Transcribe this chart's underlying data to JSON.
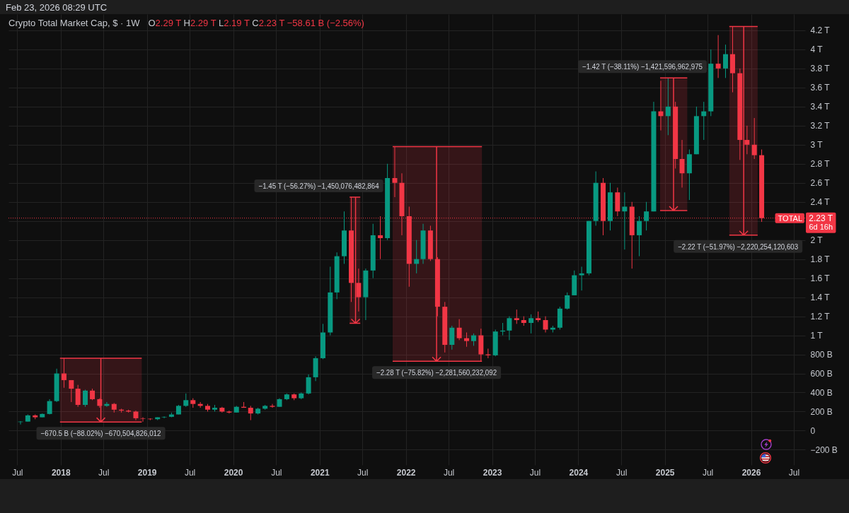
{
  "chart_data": {
    "type": "candlestick",
    "title": "Crypto Total Market Cap, $ · 1W",
    "subtitle": "O2.29 T H2.29 T L2.19 T C2.23 T −58.61 B (−2.56%)",
    "x": [
      "2017-07-15",
      "2017-08-15",
      "2017-09-15",
      "2017-10-15",
      "2017-11-15",
      "2017-12-15",
      "2018-01-15",
      "2018-02-15",
      "2018-03-15",
      "2018-04-15",
      "2018-05-15",
      "2018-06-15",
      "2018-07-15",
      "2018-08-15",
      "2018-09-15",
      "2018-10-15",
      "2018-11-15",
      "2018-12-15",
      "2019-01-15",
      "2019-02-15",
      "2019-03-15",
      "2019-04-15",
      "2019-05-15",
      "2019-06-15",
      "2019-07-15",
      "2019-08-15",
      "2019-09-15",
      "2019-10-15",
      "2019-11-15",
      "2019-12-15",
      "2020-01-15",
      "2020-02-15",
      "2020-03-15",
      "2020-04-15",
      "2020-05-15",
      "2020-06-15",
      "2020-07-15",
      "2020-08-15",
      "2020-09-15",
      "2020-10-15",
      "2020-11-15",
      "2020-12-15",
      "2021-01-15",
      "2021-02-15",
      "2021-03-15",
      "2021-04-15",
      "2021-05-15",
      "2021-06-15",
      "2021-07-15",
      "2021-08-15",
      "2021-09-15",
      "2021-10-15",
      "2021-11-15",
      "2021-12-15",
      "2022-01-15",
      "2022-02-15",
      "2022-03-15",
      "2022-04-15",
      "2022-05-15",
      "2022-06-15",
      "2022-07-15",
      "2022-08-15",
      "2022-09-15",
      "2022-10-15",
      "2022-11-15",
      "2022-12-15",
      "2023-01-15",
      "2023-02-15",
      "2023-03-15",
      "2023-04-15",
      "2023-05-15",
      "2023-06-15",
      "2023-07-15",
      "2023-08-15",
      "2023-09-15",
      "2023-10-15",
      "2023-11-15",
      "2023-12-15",
      "2024-01-15",
      "2024-02-15",
      "2024-03-15",
      "2024-04-15",
      "2024-05-15",
      "2024-06-15",
      "2024-07-15",
      "2024-08-15",
      "2024-09-15",
      "2024-10-15",
      "2024-11-15",
      "2024-12-15",
      "2025-01-15",
      "2025-02-15",
      "2025-03-15",
      "2025-04-15",
      "2025-05-15",
      "2025-06-15",
      "2025-07-15",
      "2025-08-15",
      "2025-09-15",
      "2025-10-15",
      "2025-11-15",
      "2025-12-15",
      "2026-01-15",
      "2026-02-15"
    ],
    "ohlc": [
      [
        90000000000.0,
        100000000000.0,
        65000000000.0,
        95000000000.0
      ],
      [
        95000000000.0,
        170000000000.0,
        95000000000.0,
        160000000000.0
      ],
      [
        160000000000.0,
        170000000000.0,
        120000000000.0,
        140000000000.0
      ],
      [
        140000000000.0,
        180000000000.0,
        140000000000.0,
        175000000000.0
      ],
      [
        175000000000.0,
        330000000000.0,
        170000000000.0,
        310000000000.0
      ],
      [
        310000000000.0,
        650000000000.0,
        300000000000.0,
        600000000000.0
      ],
      [
        600000000000.0,
        760000000000.0,
        450000000000.0,
        530000000000.0
      ],
      [
        530000000000.0,
        530000000000.0,
        300000000000.0,
        440000000000.0
      ],
      [
        440000000000.0,
        480000000000.0,
        250000000000.0,
        270000000000.0
      ],
      [
        270000000000.0,
        430000000000.0,
        250000000000.0,
        420000000000.0
      ],
      [
        420000000000.0,
        440000000000.0,
        320000000000.0,
        330000000000.0
      ],
      [
        330000000000.0,
        340000000000.0,
        240000000000.0,
        260000000000.0
      ],
      [
        260000000000.0,
        300000000000.0,
        250000000000.0,
        280000000000.0
      ],
      [
        280000000000.0,
        290000000000.0,
        190000000000.0,
        220000000000.0
      ],
      [
        220000000000.0,
        230000000000.0,
        190000000000.0,
        210000000000.0
      ],
      [
        210000000000.0,
        220000000000.0,
        190000000000.0,
        200000000000.0
      ],
      [
        200000000000.0,
        210000000000.0,
        110000000000.0,
        130000000000.0
      ],
      [
        130000000000.0,
        140000000000.0,
        94000000000.0,
        125000000000.0
      ],
      [
        125000000000.0,
        130000000000.0,
        110000000000.0,
        120000000000.0
      ],
      [
        120000000000.0,
        140000000000.0,
        110000000000.0,
        140000000000.0
      ],
      [
        140000000000.0,
        150000000000.0,
        130000000000.0,
        145000000000.0
      ],
      [
        145000000000.0,
        190000000000.0,
        140000000000.0,
        170000000000.0
      ],
      [
        170000000000.0,
        270000000000.0,
        170000000000.0,
        260000000000.0
      ],
      [
        260000000000.0,
        390000000000.0,
        250000000000.0,
        320000000000.0
      ],
      [
        320000000000.0,
        340000000000.0,
        240000000000.0,
        280000000000.0
      ],
      [
        280000000000.0,
        300000000000.0,
        240000000000.0,
        260000000000.0
      ],
      [
        260000000000.0,
        280000000000.0,
        200000000000.0,
        220000000000.0
      ],
      [
        220000000000.0,
        270000000000.0,
        200000000000.0,
        240000000000.0
      ],
      [
        240000000000.0,
        250000000000.0,
        190000000000.0,
        200000000000.0
      ],
      [
        200000000000.0,
        210000000000.0,
        180000000000.0,
        190000000000.0
      ],
      [
        190000000000.0,
        260000000000.0,
        190000000000.0,
        250000000000.0
      ],
      [
        250000000000.0,
        300000000000.0,
        240000000000.0,
        240000000000.0
      ],
      [
        240000000000.0,
        260000000000.0,
        110000000000.0,
        180000000000.0
      ],
      [
        180000000000.0,
        240000000000.0,
        170000000000.0,
        230000000000.0
      ],
      [
        230000000000.0,
        270000000000.0,
        220000000000.0,
        260000000000.0
      ],
      [
        260000000000.0,
        280000000000.0,
        240000000000.0,
        250000000000.0
      ],
      [
        250000000000.0,
        340000000000.0,
        250000000000.0,
        330000000000.0
      ],
      [
        330000000000.0,
        390000000000.0,
        320000000000.0,
        380000000000.0
      ],
      [
        380000000000.0,
        390000000000.0,
        320000000000.0,
        340000000000.0
      ],
      [
        340000000000.0,
        400000000000.0,
        330000000000.0,
        390000000000.0
      ],
      [
        390000000000.0,
        590000000000.0,
        380000000000.0,
        560000000000.0
      ],
      [
        560000000000.0,
        780000000000.0,
        520000000000.0,
        760000000000.0
      ],
      [
        760000000000.0,
        1120000000000.0,
        750000000000.0,
        1030000000000.0
      ],
      [
        1030000000000.0,
        1720000000000.0,
        1000000000000.0,
        1450000000000.0
      ],
      [
        1450000000000.0,
        1870000000000.0,
        1380000000000.0,
        1830000000000.0
      ],
      [
        1830000000000.0,
        2300000000000.0,
        1750000000000.0,
        2100000000000.0
      ],
      [
        2100000000000.0,
        2450000000000.0,
        1350000000000.0,
        1550000000000.0
      ],
      [
        1550000000000.0,
        1700000000000.0,
        1250000000000.0,
        1400000000000.0
      ],
      [
        1400000000000.0,
        1700000000000.0,
        1160000000000.0,
        1680000000000.0
      ],
      [
        1680000000000.0,
        2170000000000.0,
        1600000000000.0,
        2050000000000.0
      ],
      [
        2050000000000.0,
        2250000000000.0,
        1800000000000.0,
        2020000000000.0
      ],
      [
        2020000000000.0,
        2800000000000.0,
        2000000000000.0,
        2650000000000.0
      ],
      [
        2650000000000.0,
        2980000000000.0,
        2450000000000.0,
        2600000000000.0
      ],
      [
        2600000000000.0,
        2700000000000.0,
        2050000000000.0,
        2250000000000.0
      ],
      [
        2250000000000.0,
        2350000000000.0,
        1510000000000.0,
        1750000000000.0
      ],
      [
        1750000000000.0,
        2000000000000.0,
        1650000000000.0,
        1800000000000.0
      ],
      [
        1800000000000.0,
        2170000000000.0,
        1750000000000.0,
        2100000000000.0
      ],
      [
        2100000000000.0,
        2150000000000.0,
        1780000000000.0,
        1800000000000.0
      ],
      [
        1800000000000.0,
        1820000000000.0,
        1200000000000.0,
        1300000000000.0
      ],
      [
        1300000000000.0,
        1350000000000.0,
        820000000000.0,
        900000000000.0
      ],
      [
        900000000000.0,
        1100000000000.0,
        850000000000.0,
        1080000000000.0
      ],
      [
        1080000000000.0,
        1170000000000.0,
        950000000000.0,
        970000000000.0
      ],
      [
        970000000000.0,
        1030000000000.0,
        880000000000.0,
        940000000000.0
      ],
      [
        940000000000.0,
        1020000000000.0,
        890000000000.0,
        1000000000000.0
      ],
      [
        1000000000000.0,
        1070000000000.0,
        730000000000.0,
        800000000000.0
      ],
      [
        800000000000.0,
        860000000000.0,
        760000000000.0,
        790000000000.0
      ],
      [
        790000000000.0,
        1060000000000.0,
        780000000000.0,
        1040000000000.0
      ],
      [
        1040000000000.0,
        1130000000000.0,
        1000000000000.0,
        1050000000000.0
      ],
      [
        1050000000000.0,
        1200000000000.0,
        950000000000.0,
        1180000000000.0
      ],
      [
        1180000000000.0,
        1270000000000.0,
        1120000000000.0,
        1160000000000.0
      ],
      [
        1160000000000.0,
        1200000000000.0,
        1100000000000.0,
        1130000000000.0
      ],
      [
        1130000000000.0,
        1220000000000.0,
        1020000000000.0,
        1180000000000.0
      ],
      [
        1180000000000.0,
        1250000000000.0,
        1140000000000.0,
        1160000000000.0
      ],
      [
        1160000000000.0,
        1200000000000.0,
        1030000000000.0,
        1060000000000.0
      ],
      [
        1060000000000.0,
        1100000000000.0,
        1030000000000.0,
        1080000000000.0
      ],
      [
        1080000000000.0,
        1300000000000.0,
        1060000000000.0,
        1280000000000.0
      ],
      [
        1280000000000.0,
        1450000000000.0,
        1270000000000.0,
        1420000000000.0
      ],
      [
        1420000000000.0,
        1680000000000.0,
        1420000000000.0,
        1630000000000.0
      ],
      [
        1630000000000.0,
        1720000000000.0,
        1470000000000.0,
        1650000000000.0
      ],
      [
        1650000000000.0,
        2200000000000.0,
        1630000000000.0,
        2200000000000.0
      ],
      [
        2200000000000.0,
        2720000000000.0,
        2150000000000.0,
        2600000000000.0
      ],
      [
        2600000000000.0,
        2650000000000.0,
        2050000000000.0,
        2200000000000.0
      ],
      [
        2200000000000.0,
        2600000000000.0,
        2100000000000.0,
        2500000000000.0
      ],
      [
        2500000000000.0,
        2550000000000.0,
        2250000000000.0,
        2300000000000.0
      ],
      [
        2300000000000.0,
        2500000000000.0,
        1900000000000.0,
        2350000000000.0
      ],
      [
        2350000000000.0,
        2400000000000.0,
        1700000000000.0,
        2050000000000.0
      ],
      [
        2050000000000.0,
        2250000000000.0,
        1830000000000.0,
        2200000000000.0
      ],
      [
        2200000000000.0,
        2400000000000.0,
        2100000000000.0,
        2300000000000.0
      ],
      [
        2300000000000.0,
        3450000000000.0,
        2300000000000.0,
        3350000000000.0
      ],
      [
        3350000000000.0,
        3670000000000.0,
        3150000000000.0,
        3300000000000.0
      ],
      [
        3300000000000.0,
        3700000000000.0,
        3100000000000.0,
        3400000000000.0
      ],
      [
        3400000000000.0,
        3450000000000.0,
        2750000000000.0,
        2850000000000.0
      ],
      [
        2850000000000.0,
        3050000000000.0,
        2550000000000.0,
        2700000000000.0
      ],
      [
        2700000000000.0,
        2950000000000.0,
        2420000000000.0,
        2900000000000.0
      ],
      [
        2900000000000.0,
        3400000000000.0,
        2900000000000.0,
        3300000000000.0
      ],
      [
        3300000000000.0,
        3450000000000.0,
        3050000000000.0,
        3350000000000.0
      ],
      [
        3350000000000.0,
        4000000000000.0,
        3300000000000.0,
        3850000000000.0
      ],
      [
        3850000000000.0,
        4150000000000.0,
        3700000000000.0,
        3800000000000.0
      ],
      [
        3800000000000.0,
        4050000000000.0,
        3700000000000.0,
        3950000000000.0
      ],
      [
        3950000000000.0,
        4240000000000.0,
        3550000000000.0,
        3750000000000.0
      ],
      [
        3750000000000.0,
        3800000000000.0,
        2840000000000.0,
        3050000000000.0
      ],
      [
        3050000000000.0,
        3200000000000.0,
        2900000000000.0,
        3000000000000.0
      ],
      [
        3000000000000.0,
        3280000000000.0,
        2850000000000.0,
        2890000000000.0
      ],
      [
        2890000000000.0,
        2950000000000.0,
        2190000000000.0,
        2230000000000.0
      ]
    ],
    "colors": [
      "#089981",
      "#089981",
      "#f23645",
      "#089981",
      "#089981",
      "#089981",
      "#f23645",
      "#f23645",
      "#f23645",
      "#089981",
      "#f23645",
      "#f23645",
      "#089981",
      "#f23645",
      "#f23645",
      "#f23645",
      "#f23645",
      "#f23645",
      "#f23645",
      "#089981",
      "#089981",
      "#089981",
      "#089981",
      "#089981",
      "#f23645",
      "#f23645",
      "#f23645",
      "#089981",
      "#f23645",
      "#f23645",
      "#089981",
      "#f23645",
      "#f23645",
      "#089981",
      "#089981",
      "#f23645",
      "#089981",
      "#089981",
      "#f23645",
      "#089981",
      "#089981",
      "#089981",
      "#089981",
      "#089981",
      "#089981",
      "#089981",
      "#f23645",
      "#f23645",
      "#089981",
      "#089981",
      "#f23645",
      "#089981",
      "#f23645",
      "#f23645",
      "#f23645",
      "#089981",
      "#089981",
      "#f23645",
      "#f23645",
      "#f23645",
      "#089981",
      "#f23645",
      "#f23645",
      "#089981",
      "#f23645",
      "#f23645",
      "#089981",
      "#089981",
      "#089981",
      "#f23645",
      "#f23645",
      "#089981",
      "#f23645",
      "#f23645",
      "#089981",
      "#089981",
      "#089981",
      "#089981",
      "#089981",
      "#089981",
      "#089981",
      "#f23645",
      "#089981",
      "#f23645",
      "#089981",
      "#f23645",
      "#089981",
      "#089981",
      "#089981",
      "#f23645",
      "#089981",
      "#f23645",
      "#f23645",
      "#089981",
      "#089981",
      "#089981",
      "#089981",
      "#f23645",
      "#089981",
      "#f23645",
      "#f23645",
      "#f23645",
      "#f23645",
      "#f23645"
    ],
    "xlim": [
      "2017-06-09",
      "2026-08-03"
    ],
    "xticks": [
      {
        "value": "2017-07",
        "label": "Jul"
      },
      "2018",
      {
        "value": "2018-07",
        "label": "Jul"
      },
      "2019",
      {
        "value": "2019-07",
        "label": "Jul"
      },
      "2020",
      {
        "value": "2020-07",
        "label": "Jul"
      },
      "2021",
      {
        "value": "2021-07",
        "label": "Jul"
      },
      "2022",
      {
        "value": "2022-07",
        "label": "Jul"
      },
      "2023",
      {
        "value": "2023-07",
        "label": "Jul"
      },
      "2024",
      {
        "value": "2024-07",
        "label": "Jul"
      },
      "2025",
      {
        "value": "2025-07",
        "label": "Jul"
      },
      "2026",
      {
        "value": "2026-07",
        "label": "Jul"
      }
    ],
    "ylim": [
      -360000000000.0,
      4370000000000.0
    ],
    "yticks": [
      {
        "value": -200000000000.0,
        "label": "−200 B"
      },
      0,
      {
        "value": 200000000000.0,
        "label": "200 B"
      },
      {
        "value": 400000000000.0,
        "label": "400 B"
      },
      {
        "value": 600000000000.0,
        "label": "600 B"
      },
      {
        "value": 800000000000.0,
        "label": "800 B"
      },
      {
        "value": 1000000000000.0,
        "label": "1 T"
      },
      {
        "value": 1200000000000.0,
        "label": "1.2 T"
      },
      {
        "value": 1400000000000.0,
        "label": "1.4 T"
      },
      {
        "value": 1600000000000.0,
        "label": "1.6 T"
      },
      {
        "value": 1800000000000.0,
        "label": "1.8 T"
      },
      {
        "value": 2000000000000.0,
        "label": "2 T"
      },
      {
        "value": 2200000000000.0,
        "label": null
      },
      {
        "value": 2400000000000.0,
        "label": "2.4 T"
      },
      {
        "value": 2600000000000.0,
        "label": "2.6 T"
      },
      {
        "value": 2800000000000.0,
        "label": "2.8 T"
      },
      {
        "value": 3000000000000.0,
        "label": "3 T"
      },
      {
        "value": 3200000000000.0,
        "label": "3.2 T"
      },
      {
        "value": 3400000000000.0,
        "label": "3.4 T"
      },
      {
        "value": 3600000000000.0,
        "label": "3.6 T"
      },
      {
        "value": 3800000000000.0,
        "label": "3.8 T"
      },
      {
        "value": 4000000000000.0,
        "label": "4 T"
      },
      {
        "value": 4200000000000.0,
        "label": "4.2 T"
      }
    ],
    "grid": true,
    "ref_lines": [
      {
        "axis": "y",
        "value": 2230000000000.0,
        "label": "2.23 T",
        "color": "#f23645",
        "line_style": "dotted"
      }
    ],
    "bands": [
      {
        "axis": "x",
        "from": "2017-12-29",
        "to": "2018-12-10",
        "color": "#f23645"
      },
      {
        "axis": "x",
        "from": "2021-05-08",
        "to": "2021-06-22",
        "color": "#f23645"
      },
      {
        "axis": "x",
        "from": "2021-11-06",
        "to": "2022-11-19",
        "color": "#f23645"
      },
      {
        "axis": "x",
        "from": "2024-12-12",
        "to": "2025-04-06",
        "color": "#f23645"
      },
      {
        "axis": "x",
        "from": "2025-10-01",
        "to": "2026-01-29",
        "color": "#f23645"
      }
    ],
    "annotations": [
      "Feb 23, 2026 08:29 UTC",
      {
        "text": "−670.5 B (−88.02%) −670,504,826,012",
        "x": "2018-06-20",
        "y": 91300000000.0
      },
      {
        "text": "−1.45 T (−56.27%) −1,450,076,482,864",
        "x": "2021-06-02",
        "y": 1127000000000.0
      },
      {
        "text": "−2.28 T (−75.82%) −2,281,560,232,092",
        "x": "2022-05-11",
        "y": 728000000000.0
      },
      {
        "text": "−1.42 T (−38.11%) −1,421,596,962,975",
        "x": "2025-02-07",
        "y": 2309000000000.0
      },
      {
        "text": "−2.22 T (−51.97%) −2,220,254,120,603",
        "x": "2025-12-01",
        "y": 2052000000000.0
      },
      {
        "text": "TOTAL",
        "y": 2230000000000.0
      },
      "6d 16h"
    ]
  }
}
